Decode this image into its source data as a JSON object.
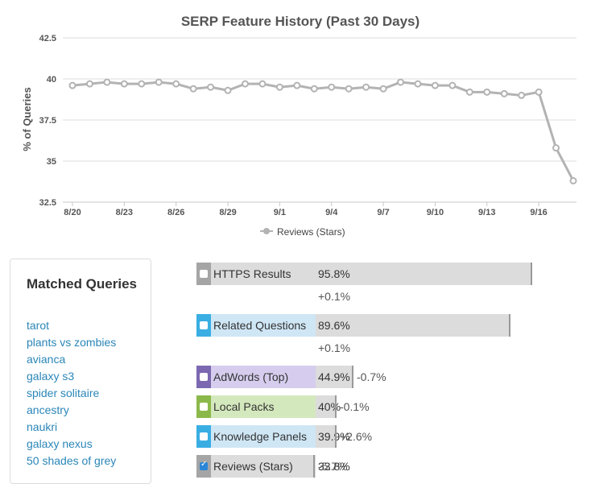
{
  "chart_data": {
    "type": "line",
    "title": "SERP Feature History (Past 30 Days)",
    "ylabel": "% of Queries",
    "xlabel": "",
    "ylim": [
      32.5,
      42.5
    ],
    "yticks": [
      "32.5",
      "35",
      "37.5",
      "40",
      "42.5"
    ],
    "grid": true,
    "legend_position": "bottom",
    "x": [
      "8/20",
      "8/21",
      "8/22",
      "8/23",
      "8/24",
      "8/25",
      "8/26",
      "8/27",
      "8/28",
      "8/29",
      "8/30",
      "8/31",
      "9/1",
      "9/2",
      "9/3",
      "9/4",
      "9/5",
      "9/6",
      "9/7",
      "9/8",
      "9/9",
      "9/10",
      "9/11",
      "9/12",
      "9/13",
      "9/14",
      "9/15",
      "9/16",
      "9/17",
      "9/18"
    ],
    "xtick_labels": [
      "8/20",
      "8/23",
      "8/26",
      "8/29",
      "9/1",
      "9/4",
      "9/7",
      "9/10",
      "9/13",
      "9/16"
    ],
    "series": [
      {
        "name": "Reviews (Stars)",
        "color": "#b3b3b3",
        "values": [
          39.6,
          39.7,
          39.8,
          39.7,
          39.7,
          39.8,
          39.7,
          39.4,
          39.5,
          39.3,
          39.7,
          39.7,
          39.5,
          39.6,
          39.4,
          39.5,
          39.4,
          39.5,
          39.4,
          39.8,
          39.7,
          39.6,
          39.6,
          39.2,
          39.2,
          39.1,
          39.0,
          39.2,
          35.8,
          33.8
        ]
      }
    ]
  },
  "matched_queries": {
    "title": "Matched Queries",
    "items": [
      "tarot",
      "plants vs zombies",
      "avianca",
      "galaxy s3",
      "spider solitaire",
      "ancestry",
      "naukri",
      "galaxy nexus",
      "50 shades of grey"
    ]
  },
  "features": [
    {
      "label": "HTTPS Results",
      "percent_text": "95.8%",
      "value": 95.8,
      "change": "+0.1%",
      "change_below": true,
      "color": "#a5a5a5",
      "checked": false
    },
    {
      "label": "Related Questions",
      "percent_text": "89.6%",
      "value": 89.6,
      "change": "+0.1%",
      "change_below": true,
      "color": "#3aaee3",
      "checked": false
    },
    {
      "label": "AdWords (Top)",
      "percent_text": "44.9%",
      "value": 44.9,
      "change": "-0.7%",
      "change_below": false,
      "color": "#7b68b0",
      "checked": false
    },
    {
      "label": "Local Packs",
      "percent_text": "40%",
      "value": 40.0,
      "change": "-0.1%",
      "change_below": false,
      "color": "#8bb84a",
      "checked": false
    },
    {
      "label": "Knowledge Panels",
      "percent_text": "39.9%",
      "value": 39.9,
      "change": "+2.6%",
      "change_below": false,
      "color": "#3aaee3",
      "checked": false
    },
    {
      "label": "Reviews (Stars)",
      "percent_text": "33.8%",
      "value": 33.8,
      "change": "-5.7%",
      "change_below": false,
      "color": "#a5a5a5",
      "checked": true
    }
  ],
  "colors": {
    "label_bg": {
      "HTTPS Results": "#dcdcdc",
      "Related Questions": "#cfe6f5",
      "AdWords (Top)": "#d6cdee",
      "Local Packs": "#d4e8bd",
      "Knowledge Panels": "#cfe6f5",
      "Reviews (Stars)": "#dcdcdc"
    }
  }
}
